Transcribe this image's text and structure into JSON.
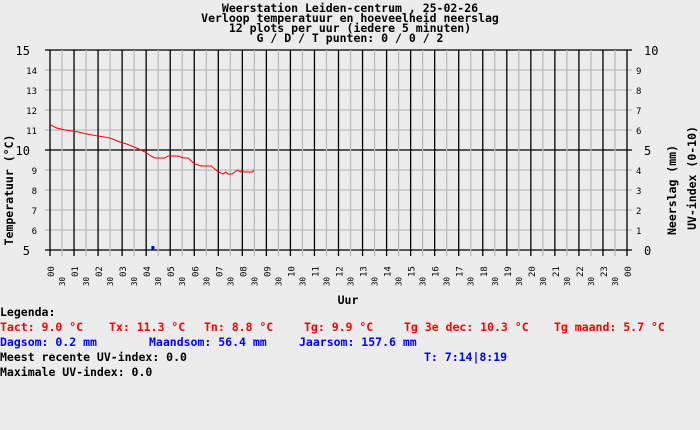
{
  "title_lines": [
    "Weerstation Leiden-centrum , 25-02-26",
    "Verloop temperatuur en hoeveelheid neerslag",
    "12 plots per uur (iedere 5 minuten)",
    "G / D / T punten: 0 / 0 / 2"
  ],
  "legend": {
    "heading": "Legenda:",
    "row1": [
      "Tact: 9.0 °C",
      "Tx: 11.3 °C",
      "Tn: 8.8 °C",
      "Tg: 9.9 °C",
      "Tg 3e dec: 10.3 °C",
      "Tg maand: 5.7 °C"
    ],
    "row2": [
      "Dagsom: 0.2 mm",
      "Maandsom: 56.4 mm",
      "Jaarsom: 157.6 mm"
    ],
    "uv_recent": "Meest recente UV-index: 0.0",
    "time": "T: 7:14|8:19",
    "uv_max": "Maximale UV-index: 0.0"
  },
  "colors": {
    "temperature": "#ff0000",
    "rain": "#0000ff",
    "text_blue": "#0000ff",
    "text_red": "#ff0000",
    "grid_major": "#000000",
    "grid_minor": "#bbbbbb",
    "background": "#ececec"
  },
  "chart_data": {
    "type": "line",
    "xlabel": "Uur",
    "ylabel_left": "Temperatuur (°C)",
    "ylabel_right": [
      "Neerslag (mm)",
      "UV-index (0-10)"
    ],
    "xlim": [
      0,
      24
    ],
    "ylim_left": [
      5,
      15
    ],
    "ylim_right": [
      0,
      10
    ],
    "x_tick_labels": [
      "00",
      "01",
      "02",
      "03",
      "04",
      "05",
      "06",
      "07",
      "08",
      "09",
      "10",
      "11",
      "12",
      "13",
      "14",
      "15",
      "16",
      "17",
      "18",
      "19",
      "20",
      "21",
      "22",
      "23",
      "00"
    ],
    "x_half_label": "30",
    "y_left_ticks": [
      "5",
      "6",
      "7",
      "8",
      "9",
      "10",
      "11",
      "12",
      "13",
      "14",
      "15"
    ],
    "y_right_ticks": [
      "0",
      "1",
      "2",
      "3",
      "4",
      "5",
      "6",
      "7",
      "8",
      "9",
      "10"
    ],
    "grid": true,
    "series": [
      {
        "name": "Temperatuur",
        "axis": "left",
        "x_hours": [
          0,
          0.1,
          0.28,
          0.62,
          1.18,
          1.52,
          2.0,
          2.49,
          2.9,
          3.18,
          3.6,
          3.95,
          4.2,
          4.36,
          4.77,
          4.91,
          5.33,
          5.54,
          5.74,
          6.02,
          6.3,
          6.71,
          6.99,
          7.2,
          7.31,
          7.4,
          7.58,
          7.68,
          7.82,
          7.91,
          7.98,
          8.08,
          8.42,
          8.49
        ],
        "values": [
          11.3,
          11.2,
          11.1,
          11.0,
          10.9,
          10.8,
          10.7,
          10.6,
          10.4,
          10.3,
          10.1,
          9.9,
          9.7,
          9.6,
          9.6,
          9.7,
          9.7,
          9.6,
          9.6,
          9.3,
          9.2,
          9.2,
          8.9,
          8.8,
          8.9,
          8.8,
          8.8,
          8.9,
          9.0,
          8.9,
          9.0,
          8.9,
          8.9,
          9.0
        ]
      },
      {
        "name": "Neerslag",
        "axis": "right",
        "type": "bar",
        "x_hours": [
          4.28
        ],
        "values": [
          0.2
        ]
      }
    ]
  }
}
